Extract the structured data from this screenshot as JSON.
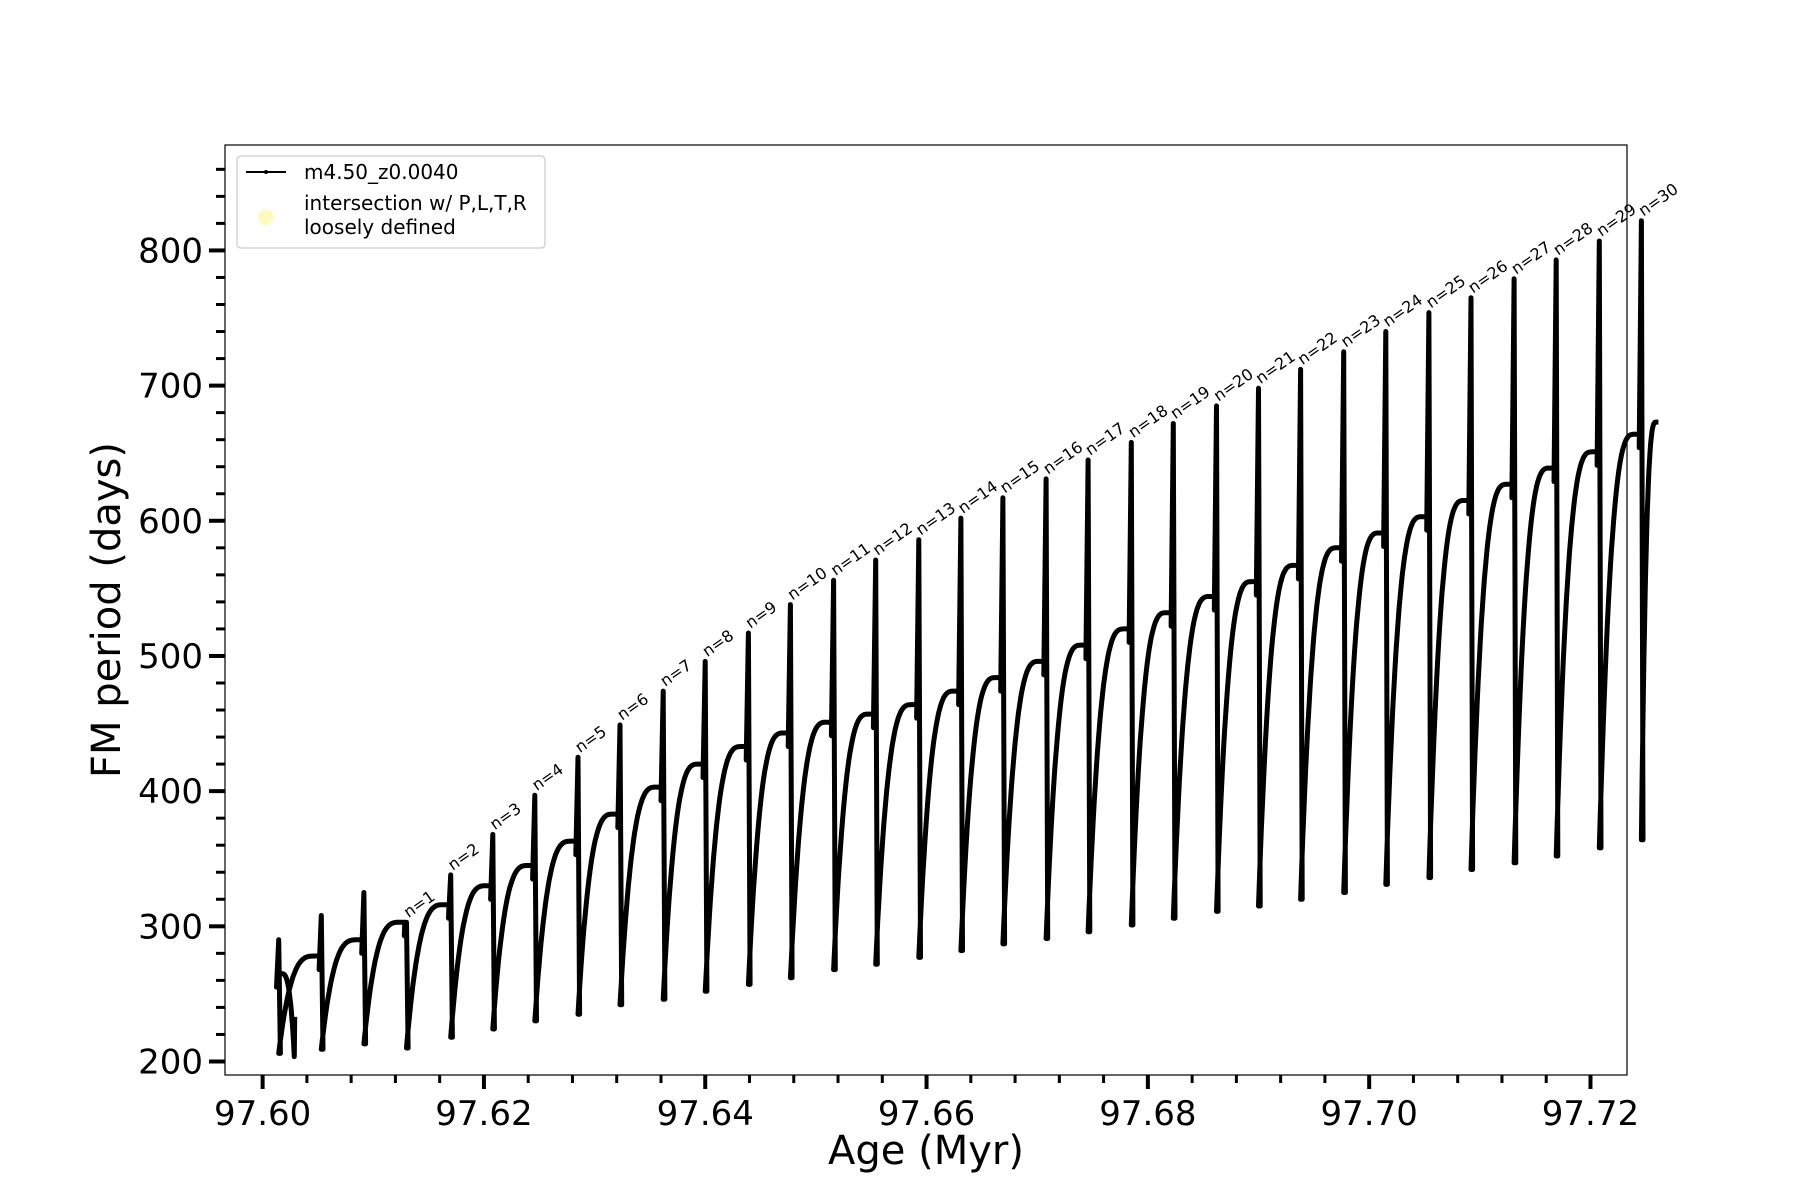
{
  "chart_data": {
    "type": "line",
    "title": "",
    "xlabel": "Age (Myr)",
    "ylabel": "FM period (days)",
    "xlim": [
      97.5966,
      97.7233
    ],
    "ylim": [
      190,
      878
    ],
    "x_ticks": [
      "97.60",
      "97.62",
      "97.64",
      "97.66",
      "97.68",
      "97.70",
      "97.72"
    ],
    "x_tick_values": [
      97.6,
      97.62,
      97.64,
      97.66,
      97.68,
      97.7,
      97.72
    ],
    "y_ticks": [
      "200",
      "300",
      "400",
      "500",
      "600",
      "700",
      "800"
    ],
    "y_tick_values": [
      200,
      300,
      400,
      500,
      600,
      700,
      800
    ],
    "legend": {
      "position": "upper-left",
      "entries": [
        {
          "label": "m4.50_z0.0040",
          "kind": "line"
        },
        {
          "label": "intersection w/ P,L,T,R\nloosely defined",
          "kind": "marker",
          "color": "#fffbc0"
        }
      ]
    },
    "series": [
      {
        "name": "m4.50_z0.0040",
        "color": "#000000",
        "start": {
          "x": 97.6029,
          "y": 233
        },
        "pulses": [
          {
            "n": 1,
            "age": 97.613,
            "peak": 303,
            "drop": 210
          },
          {
            "n": 2,
            "age": 97.617,
            "peak": 338,
            "drop": 218
          },
          {
            "n": 3,
            "age": 97.6208,
            "peak": 368,
            "drop": 224
          },
          {
            "n": 4,
            "age": 97.6246,
            "peak": 397,
            "drop": 230
          },
          {
            "n": 5,
            "age": 97.6285,
            "peak": 425,
            "drop": 235
          },
          {
            "n": 6,
            "age": 97.6323,
            "peak": 449,
            "drop": 242
          },
          {
            "n": 7,
            "age": 97.6362,
            "peak": 474,
            "drop": 246
          },
          {
            "n": 8,
            "age": 97.64,
            "peak": 496,
            "drop": 252
          },
          {
            "n": 9,
            "age": 97.6439,
            "peak": 517,
            "drop": 257
          },
          {
            "n": 10,
            "age": 97.6477,
            "peak": 538,
            "drop": 262
          },
          {
            "n": 11,
            "age": 97.6516,
            "peak": 556,
            "drop": 268
          },
          {
            "n": 12,
            "age": 97.6554,
            "peak": 571,
            "drop": 272
          },
          {
            "n": 13,
            "age": 97.6593,
            "peak": 586,
            "drop": 277
          },
          {
            "n": 14,
            "age": 97.6631,
            "peak": 602,
            "drop": 282
          },
          {
            "n": 15,
            "age": 97.6669,
            "peak": 617,
            "drop": 287
          },
          {
            "n": 16,
            "age": 97.6708,
            "peak": 631,
            "drop": 291
          },
          {
            "n": 17,
            "age": 97.6746,
            "peak": 645,
            "drop": 296
          },
          {
            "n": 18,
            "age": 97.6785,
            "peak": 658,
            "drop": 301
          },
          {
            "n": 19,
            "age": 97.6823,
            "peak": 672,
            "drop": 306
          },
          {
            "n": 20,
            "age": 97.6862,
            "peak": 685,
            "drop": 311
          },
          {
            "n": 21,
            "age": 97.69,
            "peak": 698,
            "drop": 315
          },
          {
            "n": 22,
            "age": 97.6938,
            "peak": 712,
            "drop": 320
          },
          {
            "n": 23,
            "age": 97.6977,
            "peak": 725,
            "drop": 325
          },
          {
            "n": 24,
            "age": 97.7015,
            "peak": 740,
            "drop": 331
          },
          {
            "n": 25,
            "age": 97.7054,
            "peak": 754,
            "drop": 336
          },
          {
            "n": 26,
            "age": 97.7092,
            "peak": 765,
            "drop": 342
          },
          {
            "n": 27,
            "age": 97.7131,
            "peak": 779,
            "drop": 347
          },
          {
            "n": 28,
            "age": 97.7169,
            "peak": 793,
            "drop": 352
          },
          {
            "n": 29,
            "age": 97.7208,
            "peak": 807,
            "drop": 358
          },
          {
            "n": 30,
            "age": 97.7246,
            "peak": 822,
            "drop": 364
          }
        ],
        "cycle_maxima": [
          265,
          278,
          290,
          303,
          316,
          330,
          345,
          363,
          383,
          403,
          420,
          433,
          443,
          451,
          457,
          464,
          474,
          484,
          496,
          508,
          520,
          532,
          544,
          555,
          567,
          580,
          591,
          603,
          615,
          627,
          639,
          651,
          664
        ],
        "end": {
          "x": 97.7262,
          "y": 673
        }
      }
    ]
  }
}
